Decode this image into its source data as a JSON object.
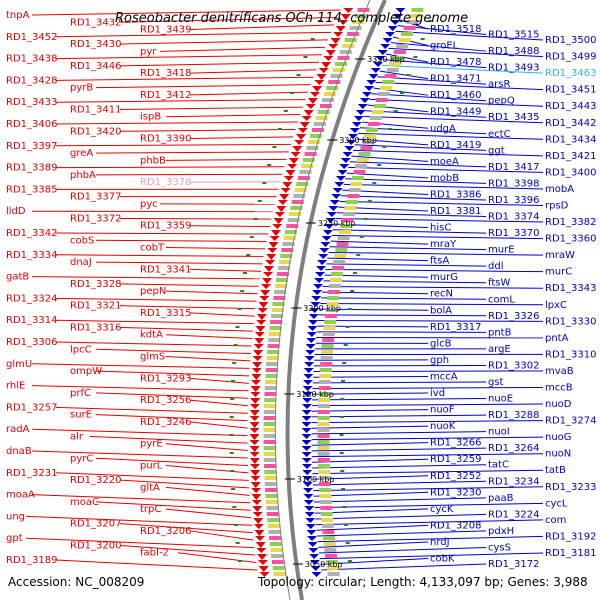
{
  "title": "Roseobacter denitrificans OCh 114, complete genome",
  "accession_text": "Accession: NC_008209",
  "summary_text": "Topology: circular; Length: 4,133,097 bp; Genes: 3,988",
  "colors": {
    "left_strand": "#e60000",
    "right_strand": "#0000cc",
    "highlight_left": "#f29ab6",
    "highlight_right": "#33b5e5",
    "backbone": "#7f7f7f",
    "tick_mark": "#1a8a1a"
  },
  "kbp_ticks": [
    "3350 kbp",
    "3300 kbp",
    "3250 kbp",
    "3200 kbp",
    "3150 kbp",
    "3100 kbp",
    "3050 kbp"
  ],
  "left_labels": [
    "tnpA",
    "RD1_3432",
    "RD1_3439",
    "RD1_3452",
    "RD1_3430",
    "pyr",
    "RD1_3438",
    "RD1_3446",
    "RD1_3418",
    "RD1_3428",
    "pyrB",
    "RD1_3412",
    "RD1_3433",
    "RD1_3411",
    "ispB",
    "RD1_3406",
    "RD1_3420",
    "RD1_3390",
    "RD1_3397",
    "greA",
    "phbB",
    "RD1_3389",
    "phbA",
    "RD1_3378",
    "RD1_3385",
    "RD1_3377",
    "pyc",
    "lldD",
    "RD1_3372",
    "RD1_3359",
    "RD1_3342",
    "cobS",
    "cobT",
    "RD1_3334",
    "dnaJ",
    "RD1_3341",
    "gatB",
    "RD1_3328",
    "pepN",
    "RD1_3324",
    "RD1_3321",
    "RD1_3315",
    "RD1_3314",
    "RD1_3316",
    "kdtA",
    "RD1_3306",
    "lpcC",
    "glmS",
    "glmU",
    "ompW",
    "RD1_3293",
    "rhlE",
    "prfC",
    "RD1_3256",
    "RD1_3257",
    "surE",
    "RD1_3246",
    "radA",
    "alr",
    "pyrE",
    "dnaB",
    "pyrC",
    "purL",
    "RD1_3231",
    "RD1_3220",
    "gltA",
    "moaA",
    "moaC",
    "trpC",
    "ung",
    "RD1_3207",
    "RD1_3206",
    "gpt",
    "RD1_3200",
    "fabI-2",
    "RD1_3189"
  ],
  "right_labels": [
    "RD1_3518",
    "RD1_3515",
    "RD1_3500",
    "groEL",
    "RD1_3488",
    "RD1_3499",
    "RD1_3478",
    "RD1_3493",
    "RD1_3463",
    "RD1_3471",
    "arsR",
    "RD1_3451",
    "RD1_3460",
    "pepQ",
    "RD1_3443",
    "RD1_3449",
    "RD1_3435",
    "RD1_3442",
    "udgA",
    "ectC",
    "RD1_3434",
    "RD1_3419",
    "ggt",
    "RD1_3421",
    "moeA",
    "RD1_3417",
    "RD1_3400",
    "mobB",
    "RD1_3398",
    "mobA",
    "RD1_3386",
    "RD1_3396",
    "rpsD",
    "RD1_3381",
    "RD1_3374",
    "RD1_3382",
    "hisC",
    "RD1_3370",
    "RD1_3360",
    "mraY",
    "murE",
    "mraW",
    "ftsA",
    "ddl",
    "murC",
    "murG",
    "ftsW",
    "RD1_3343",
    "recN",
    "comL",
    "lpxC",
    "bolA",
    "RD1_3326",
    "RD1_3330",
    "RD1_3317",
    "pntB",
    "pntA",
    "glcB",
    "argE",
    "RD1_3310",
    "gph",
    "RD1_3302",
    "mvaB",
    "mccA",
    "gst",
    "mccB",
    "ivd",
    "nuoE",
    "nuoD",
    "nuoF",
    "RD1_3288",
    "RD1_3274",
    "nuoK",
    "nuoI",
    "nuoG",
    "RD1_3266",
    "RD1_3264",
    "nuoN",
    "RD1_3259",
    "tatC",
    "tatB",
    "RD1_3252",
    "RD1_3234",
    "RD1_3233",
    "RD1_3230",
    "paaB",
    "cycL",
    "cycK",
    "RD1_3224",
    "com",
    "RD1_3208",
    "pdxH",
    "RD1_3192",
    "nrdJ",
    "cysS",
    "RD1_3181",
    "cobK",
    "RD1_3172"
  ]
}
